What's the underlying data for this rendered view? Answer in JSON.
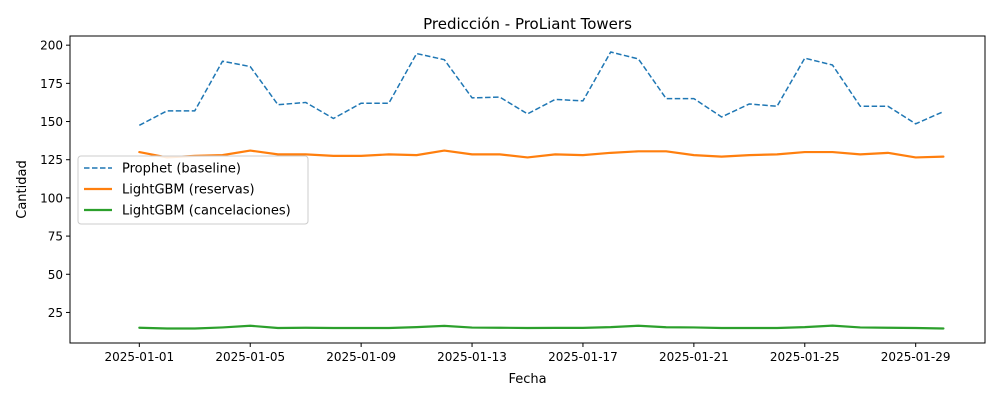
{
  "chart_data": {
    "type": "line",
    "title": "Predicción - ProLiant Towers",
    "xlabel": "Fecha",
    "ylabel": "Cantidad",
    "x_start": "2025-01-01",
    "x_end": "2025-01-30",
    "x_tick_labels": [
      "2025-01-01",
      "2025-01-05",
      "2025-01-09",
      "2025-01-13",
      "2025-01-17",
      "2025-01-21",
      "2025-01-25",
      "2025-01-29"
    ],
    "y_ticks": [
      25,
      50,
      75,
      100,
      125,
      150,
      175,
      200
    ],
    "ylim": [
      5,
      206
    ],
    "xlim": [
      "2024-12-29T12:00",
      "2025-01-31T12:00"
    ],
    "grid": false,
    "legend_position": "center-left",
    "series": [
      {
        "name": "Prophet (baseline)",
        "color": "#1f77b4",
        "style": "dashed",
        "values": [
          147.5,
          157,
          157,
          189.5,
          186,
          161,
          162.5,
          152,
          162,
          162,
          194.5,
          190.5,
          165.5,
          166,
          155,
          164.5,
          163.5,
          195.5,
          191,
          165,
          165,
          153,
          161.5,
          160,
          191.5,
          187,
          160,
          160,
          148.5,
          156.5
        ]
      },
      {
        "name": "LightGBM (reservas)",
        "color": "#ff7f0e",
        "style": "solid",
        "values": [
          130,
          126.5,
          127.5,
          128,
          131,
          128.5,
          128.5,
          127.5,
          127.5,
          128.5,
          128,
          131,
          128.5,
          128.5,
          126.5,
          128.5,
          128,
          129.5,
          130.5,
          130.5,
          128,
          127,
          128,
          128.5,
          130,
          130,
          128.5,
          129.5,
          126.5,
          127
        ]
      },
      {
        "name": "LightGBM (cancelaciones)",
        "color": "#2ca02c",
        "style": "solid",
        "values": [
          15,
          14.5,
          14.5,
          15.2,
          16.3,
          14.8,
          15,
          14.8,
          14.8,
          14.8,
          15.4,
          16.2,
          15.1,
          15,
          14.8,
          14.9,
          14.9,
          15.4,
          16.3,
          15.3,
          15.2,
          14.8,
          14.8,
          14.8,
          15.4,
          16.4,
          15.2,
          15,
          14.8,
          14.5
        ]
      }
    ]
  }
}
